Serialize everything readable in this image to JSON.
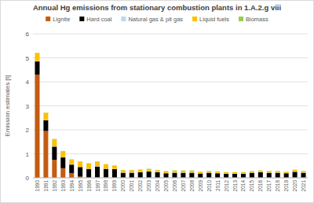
{
  "chart_data": {
    "type": "bar",
    "stacked": true,
    "grid": true,
    "legend": "top",
    "title": "Annual Hg emissions from stationary combustion plants in 1.A.2.g viii",
    "y_label": "Emission estimates [t]",
    "categories": [
      "1990",
      "1991",
      "1992",
      "1993",
      "1994",
      "1995",
      "1996",
      "1997",
      "1998",
      "1999",
      "2000",
      "2001",
      "2002",
      "2003",
      "2004",
      "2005",
      "2006",
      "2007",
      "2008",
      "2009",
      "2010",
      "2011",
      "2012",
      "2013",
      "2014",
      "2015",
      "2016",
      "2017",
      "2018",
      "2019",
      "2020",
      "2021"
    ],
    "ylim": [
      0,
      6
    ],
    "yticks": [
      0,
      1,
      2,
      3,
      4,
      5,
      6
    ],
    "series": [
      {
        "name": "Lignite",
        "color": "#c55a11",
        "values": [
          4.3,
          1.95,
          0.75,
          0.4,
          0.2,
          0.05,
          0.02,
          0.02,
          0.02,
          0.01,
          0.01,
          0.01,
          0.01,
          0.01,
          0.01,
          0.01,
          0.01,
          0.01,
          0.01,
          0.01,
          0.01,
          0.01,
          0.01,
          0.01,
          0.01,
          0.01,
          0.01,
          0.01,
          0.01,
          0.01,
          0.01,
          0.01
        ]
      },
      {
        "name": "Hard coal",
        "color": "#000000",
        "values": [
          0.55,
          0.45,
          0.55,
          0.45,
          0.35,
          0.4,
          0.35,
          0.45,
          0.35,
          0.35,
          0.2,
          0.2,
          0.22,
          0.25,
          0.22,
          0.18,
          0.2,
          0.2,
          0.2,
          0.17,
          0.2,
          0.18,
          0.16,
          0.16,
          0.16,
          0.2,
          0.22,
          0.2,
          0.2,
          0.18,
          0.24,
          0.2
        ]
      },
      {
        "name": "Natural gas & pit gas",
        "color": "#bdd7ee",
        "values": [
          0.02,
          0.01,
          0.01,
          0.01,
          0.01,
          0.01,
          0.01,
          0.01,
          0.01,
          0.01,
          0.01,
          0.01,
          0.01,
          0.01,
          0.01,
          0.01,
          0.01,
          0.01,
          0.01,
          0.01,
          0.01,
          0.01,
          0.01,
          0.01,
          0.01,
          0.01,
          0.01,
          0.01,
          0.01,
          0.01,
          0.01,
          0.01
        ]
      },
      {
        "name": "Liquid fuels",
        "color": "#ffc000",
        "values": [
          0.33,
          0.3,
          0.3,
          0.25,
          0.2,
          0.22,
          0.22,
          0.2,
          0.18,
          0.14,
          0.1,
          0.1,
          0.1,
          0.1,
          0.08,
          0.08,
          0.08,
          0.08,
          0.08,
          0.06,
          0.06,
          0.06,
          0.05,
          0.05,
          0.05,
          0.05,
          0.06,
          0.06,
          0.06,
          0.05,
          0.07,
          0.06
        ]
      },
      {
        "name": "Biomass",
        "color": "#92d050",
        "values": [
          0.01,
          0.01,
          0.01,
          0.01,
          0.01,
          0.01,
          0.01,
          0.01,
          0.01,
          0.01,
          0.01,
          0.01,
          0.01,
          0.01,
          0.01,
          0.01,
          0.01,
          0.01,
          0.01,
          0.01,
          0.01,
          0.01,
          0.01,
          0.01,
          0.01,
          0.01,
          0.01,
          0.01,
          0.01,
          0.01,
          0.01,
          0.01
        ]
      }
    ]
  }
}
